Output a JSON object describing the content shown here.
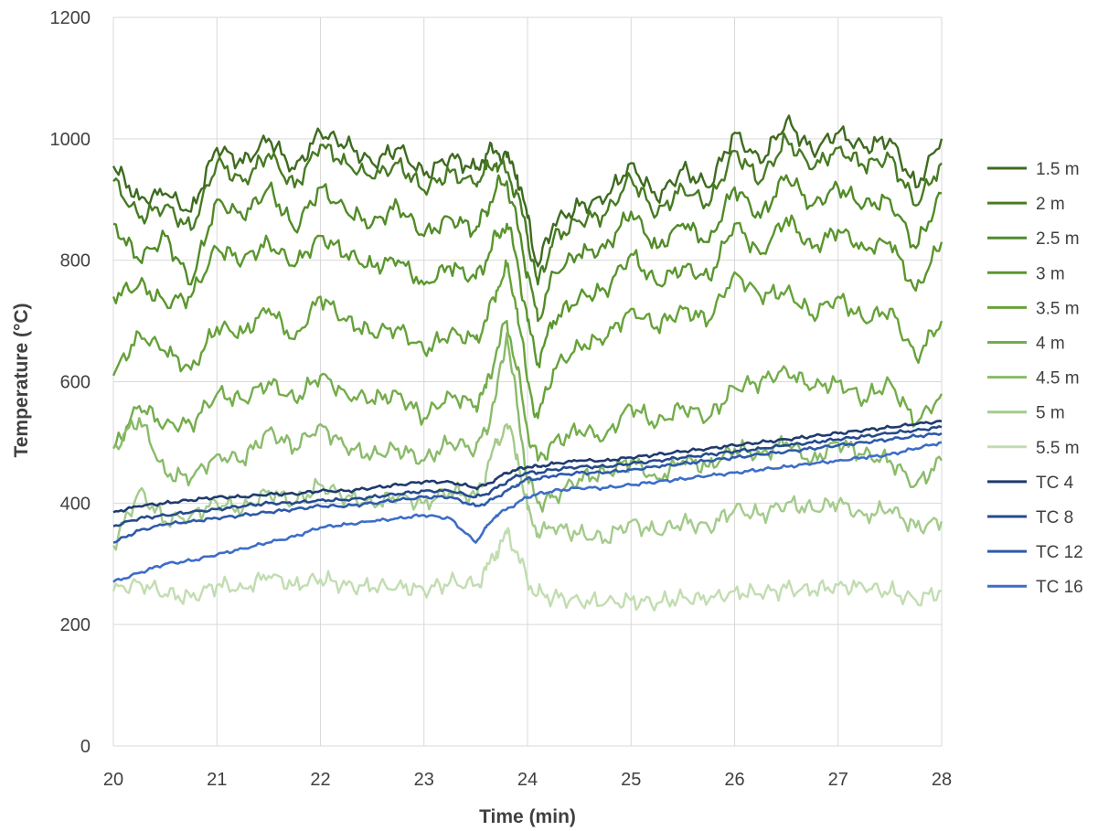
{
  "chart_data": {
    "type": "line",
    "title": "",
    "xlabel": "Time (min)",
    "ylabel": "Temperature (°C)",
    "xlim": [
      20,
      28
    ],
    "ylim": [
      0,
      1200
    ],
    "xticks": [
      20,
      21,
      22,
      23,
      24,
      25,
      26,
      27,
      28
    ],
    "yticks": [
      0,
      200,
      400,
      600,
      800,
      1000,
      1200
    ],
    "grid": true,
    "legend_position": "right",
    "x": [
      20.0,
      20.25,
      20.5,
      20.75,
      21.0,
      21.25,
      21.5,
      21.75,
      22.0,
      22.25,
      22.5,
      22.75,
      23.0,
      23.25,
      23.5,
      23.6,
      23.7,
      23.8,
      23.9,
      24.0,
      24.1,
      24.25,
      24.5,
      24.75,
      25.0,
      25.25,
      25.5,
      25.75,
      26.0,
      26.25,
      26.5,
      26.75,
      27.0,
      27.25,
      27.5,
      27.75,
      28.0
    ],
    "series": [
      {
        "name": "1.5 m",
        "color": "#3e6b1f",
        "values": [
          955,
          900,
          910,
          880,
          985,
          960,
          1000,
          950,
          1010,
          990,
          960,
          985,
          940,
          970,
          950,
          975,
          980,
          970,
          940,
          870,
          790,
          860,
          890,
          900,
          960,
          900,
          950,
          920,
          1010,
          960,
          1030,
          980,
          1010,
          985,
          1000,
          920,
          1000
        ]
      },
      {
        "name": "2 m",
        "color": "#477b23",
        "values": [
          930,
          870,
          890,
          850,
          960,
          930,
          975,
          920,
          990,
          960,
          935,
          960,
          915,
          945,
          925,
          950,
          960,
          945,
          910,
          840,
          760,
          835,
          865,
          875,
          935,
          875,
          920,
          890,
          980,
          930,
          1000,
          950,
          985,
          955,
          970,
          890,
          960
        ]
      },
      {
        "name": "2.5 m",
        "color": "#518b28",
        "values": [
          860,
          800,
          840,
          760,
          900,
          870,
          920,
          850,
          920,
          880,
          860,
          890,
          840,
          870,
          850,
          880,
          920,
          930,
          860,
          780,
          700,
          780,
          810,
          820,
          880,
          820,
          860,
          830,
          920,
          870,
          940,
          890,
          920,
          890,
          900,
          820,
          910
        ]
      },
      {
        "name": "3 m",
        "color": "#5a962e",
        "values": [
          740,
          760,
          730,
          740,
          820,
          800,
          830,
          790,
          840,
          810,
          790,
          800,
          760,
          790,
          770,
          800,
          840,
          860,
          800,
          700,
          630,
          700,
          740,
          750,
          810,
          760,
          790,
          770,
          860,
          810,
          870,
          820,
          850,
          820,
          830,
          750,
          830
        ]
      },
      {
        "name": "3.5 m",
        "color": "#66a23a",
        "values": [
          610,
          680,
          650,
          620,
          690,
          680,
          720,
          670,
          740,
          700,
          680,
          690,
          650,
          680,
          670,
          700,
          750,
          790,
          720,
          600,
          540,
          620,
          660,
          670,
          720,
          690,
          720,
          700,
          780,
          740,
          750,
          710,
          740,
          700,
          720,
          640,
          700
        ]
      },
      {
        "name": "4 m",
        "color": "#74ad4b",
        "values": [
          490,
          560,
          530,
          530,
          580,
          570,
          600,
          570,
          610,
          580,
          570,
          580,
          540,
          580,
          560,
          590,
          650,
          700,
          620,
          520,
          470,
          500,
          520,
          510,
          560,
          530,
          560,
          540,
          590,
          600,
          620,
          590,
          600,
          570,
          600,
          530,
          580
        ]
      },
      {
        "name": "4.5 m",
        "color": "#89bb69",
        "values": [
          490,
          540,
          450,
          440,
          480,
          470,
          520,
          490,
          530,
          490,
          480,
          490,
          470,
          500,
          490,
          520,
          580,
          680,
          560,
          440,
          400,
          410,
          440,
          450,
          470,
          440,
          470,
          460,
          490,
          480,
          500,
          470,
          500,
          480,
          470,
          430,
          470
        ]
      },
      {
        "name": "5 m",
        "color": "#a4cb8c",
        "values": [
          330,
          420,
          370,
          380,
          400,
          390,
          420,
          400,
          430,
          410,
          400,
          410,
          400,
          420,
          410,
          450,
          500,
          530,
          480,
          390,
          350,
          360,
          350,
          340,
          370,
          350,
          370,
          360,
          390,
          380,
          400,
          390,
          400,
          380,
          390,
          360,
          370
        ]
      },
      {
        "name": "5.5 m",
        "color": "#c2ddb1",
        "values": [
          255,
          270,
          250,
          245,
          265,
          260,
          280,
          265,
          275,
          265,
          260,
          265,
          255,
          270,
          265,
          290,
          320,
          350,
          320,
          270,
          250,
          245,
          240,
          235,
          240,
          235,
          245,
          240,
          255,
          250,
          260,
          255,
          265,
          260,
          255,
          240,
          255
        ]
      },
      {
        "name": "TC 4",
        "color": "#1f3a6e",
        "values": [
          385,
          395,
          400,
          405,
          410,
          410,
          415,
          415,
          420,
          420,
          425,
          430,
          435,
          435,
          425,
          430,
          440,
          450,
          455,
          460,
          460,
          465,
          470,
          470,
          475,
          480,
          485,
          490,
          495,
          500,
          505,
          510,
          515,
          520,
          525,
          530,
          535
        ]
      },
      {
        "name": "TC 8",
        "color": "#254a8c",
        "values": [
          362,
          375,
          380,
          385,
          390,
          395,
          400,
          400,
          405,
          405,
          410,
          415,
          420,
          420,
          410,
          415,
          425,
          435,
          445,
          450,
          450,
          455,
          460,
          460,
          465,
          470,
          475,
          480,
          485,
          490,
          495,
          500,
          505,
          510,
          515,
          520,
          525
        ]
      },
      {
        "name": "TC 12",
        "color": "#2e5aaa",
        "values": [
          335,
          355,
          365,
          370,
          375,
          380,
          385,
          390,
          395,
          395,
          400,
          405,
          410,
          410,
          395,
          400,
          410,
          420,
          430,
          440,
          440,
          445,
          450,
          450,
          455,
          460,
          465,
          470,
          475,
          480,
          485,
          490,
          495,
          500,
          505,
          510,
          515
        ]
      },
      {
        "name": "TC 16",
        "color": "#3d6dc8",
        "values": [
          270,
          285,
          300,
          305,
          315,
          325,
          335,
          345,
          360,
          365,
          370,
          375,
          380,
          375,
          335,
          360,
          380,
          390,
          400,
          410,
          415,
          420,
          425,
          425,
          430,
          435,
          440,
          445,
          450,
          455,
          460,
          465,
          470,
          475,
          480,
          490,
          500
        ]
      }
    ]
  }
}
